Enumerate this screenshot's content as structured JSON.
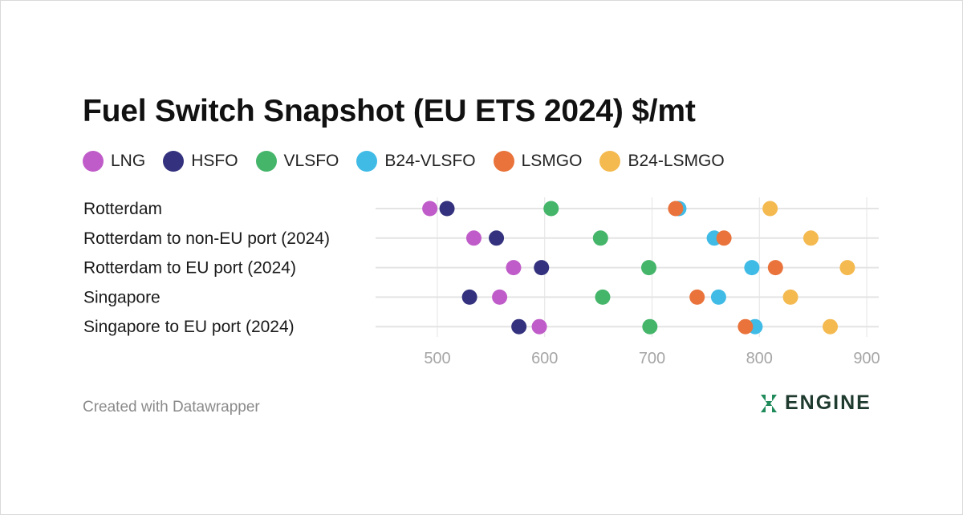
{
  "title": "Fuel Switch Snapshot (EU ETS 2024) $/mt",
  "footer": "Created with Datawrapper",
  "logo": {
    "text": "ENGINE"
  },
  "legend": [
    {
      "name": "LNG",
      "color": "#c05cc9"
    },
    {
      "name": "HSFO",
      "color": "#34327e"
    },
    {
      "name": "VLSFO",
      "color": "#45b56a"
    },
    {
      "name": "B24-VLSFO",
      "color": "#3fbbe6"
    },
    {
      "name": "LSMGO",
      "color": "#e9733b"
    },
    {
      "name": "B24-LSMGO",
      "color": "#f4ba50"
    }
  ],
  "chart_data": {
    "type": "scatter",
    "title": "Fuel Switch Snapshot (EU ETS 2024) $/mt",
    "categories": [
      "Rotterdam",
      "Rotterdam to non-EU port (2024)",
      "Rotterdam to EU port (2024)",
      "Singapore",
      "Singapore to EU port (2024)"
    ],
    "series": [
      {
        "name": "LNG",
        "color": "#c05cc9",
        "values": [
          493,
          534,
          571,
          558,
          595
        ]
      },
      {
        "name": "HSFO",
        "color": "#34327e",
        "values": [
          509,
          555,
          597,
          530,
          576
        ]
      },
      {
        "name": "VLSFO",
        "color": "#45b56a",
        "values": [
          606,
          652,
          697,
          654,
          698
        ]
      },
      {
        "name": "B24-VLSFO",
        "color": "#3fbbe6",
        "values": [
          725,
          758,
          793,
          762,
          796
        ]
      },
      {
        "name": "LSMGO",
        "color": "#e9733b",
        "values": [
          722,
          767,
          815,
          742,
          787
        ]
      },
      {
        "name": "B24-LSMGO",
        "color": "#f4ba50",
        "values": [
          810,
          848,
          882,
          829,
          866
        ]
      }
    ],
    "xlim": [
      450,
      910
    ],
    "xticks": [
      "500",
      "600",
      "700",
      "800",
      "900"
    ],
    "grid": true,
    "legend_position": "top"
  }
}
